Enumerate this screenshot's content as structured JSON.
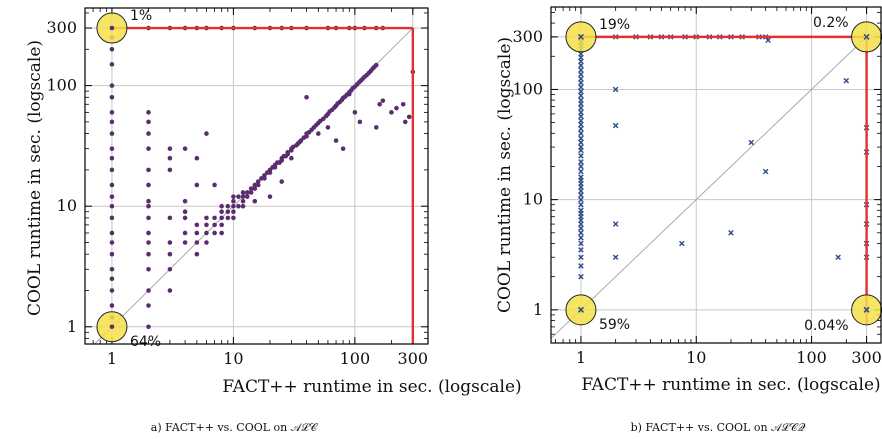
{
  "chart_data": [
    {
      "type": "scatter",
      "caption": "a) FACT++ vs. COOL on 𝒜ℒ𝒞",
      "xlabel": "FACT++ runtime in sec. (logscale)",
      "ylabel": "COOL runtime in sec. (logscale)",
      "x_scale": "log",
      "y_scale": "log",
      "xlim": [
        0.6,
        400
      ],
      "ylim": [
        0.72,
        440
      ],
      "x_ticks": [
        1,
        10,
        100,
        300
      ],
      "y_ticks": [
        1,
        10,
        100,
        300
      ],
      "grid": true,
      "marker": "dot",
      "color": "#5b2d6e",
      "timeout": 300,
      "highlights": [
        {
          "x": 1,
          "y": 300,
          "label": "1%"
        },
        {
          "x": 1,
          "y": 1,
          "label": "64%"
        }
      ],
      "points": [
        [
          1,
          1
        ],
        [
          1,
          1.2
        ],
        [
          1,
          1.5
        ],
        [
          1,
          2
        ],
        [
          1,
          2.5
        ],
        [
          1,
          3
        ],
        [
          1,
          4
        ],
        [
          1,
          5
        ],
        [
          1,
          6
        ],
        [
          1,
          8
        ],
        [
          1,
          10
        ],
        [
          1,
          12
        ],
        [
          1,
          15
        ],
        [
          1,
          20
        ],
        [
          1,
          25
        ],
        [
          1,
          30
        ],
        [
          1,
          40
        ],
        [
          1,
          50
        ],
        [
          1,
          60
        ],
        [
          1,
          80
        ],
        [
          1,
          100
        ],
        [
          1,
          150
        ],
        [
          1,
          200
        ],
        [
          1,
          250
        ],
        [
          1,
          300
        ],
        [
          2,
          300
        ],
        [
          3,
          300
        ],
        [
          4,
          300
        ],
        [
          5,
          300
        ],
        [
          6,
          300
        ],
        [
          8,
          300
        ],
        [
          10,
          300
        ],
        [
          15,
          300
        ],
        [
          20,
          300
        ],
        [
          25,
          300
        ],
        [
          30,
          300
        ],
        [
          40,
          300
        ],
        [
          60,
          300
        ],
        [
          70,
          300
        ],
        [
          90,
          300
        ],
        [
          100,
          300
        ],
        [
          120,
          300
        ],
        [
          150,
          300
        ],
        [
          170,
          300
        ],
        [
          2,
          1
        ],
        [
          2,
          1.5
        ],
        [
          2,
          2
        ],
        [
          2,
          3
        ],
        [
          2,
          4
        ],
        [
          2,
          5
        ],
        [
          2,
          6
        ],
        [
          2,
          8
        ],
        [
          2,
          10
        ],
        [
          2,
          11
        ],
        [
          2,
          15
        ],
        [
          2,
          20
        ],
        [
          2,
          30
        ],
        [
          2,
          40
        ],
        [
          2,
          50
        ],
        [
          2,
          60
        ],
        [
          3,
          2
        ],
        [
          3,
          3
        ],
        [
          3,
          4
        ],
        [
          3,
          5
        ],
        [
          3,
          8
        ],
        [
          3,
          20
        ],
        [
          3,
          25
        ],
        [
          3,
          30
        ],
        [
          4,
          5
        ],
        [
          4,
          6
        ],
        [
          4,
          8
        ],
        [
          4,
          9
        ],
        [
          4,
          11
        ],
        [
          4,
          30
        ],
        [
          5,
          4
        ],
        [
          5,
          5
        ],
        [
          5,
          6
        ],
        [
          5,
          7
        ],
        [
          5,
          15
        ],
        [
          5,
          25
        ],
        [
          6,
          5
        ],
        [
          6,
          6
        ],
        [
          6,
          7
        ],
        [
          6,
          8
        ],
        [
          6,
          40
        ],
        [
          7,
          6
        ],
        [
          7,
          7
        ],
        [
          7,
          8
        ],
        [
          7,
          15
        ],
        [
          8,
          6
        ],
        [
          8,
          7
        ],
        [
          8,
          8
        ],
        [
          8,
          9
        ],
        [
          8,
          10
        ],
        [
          9,
          8
        ],
        [
          9,
          9
        ],
        [
          9,
          10
        ],
        [
          10,
          8
        ],
        [
          10,
          9
        ],
        [
          10,
          10
        ],
        [
          10,
          11
        ],
        [
          10,
          12
        ],
        [
          11,
          10
        ],
        [
          11,
          12
        ],
        [
          12,
          11
        ],
        [
          12,
          12
        ],
        [
          12,
          13
        ],
        [
          13,
          12
        ],
        [
          13,
          13
        ],
        [
          14,
          13
        ],
        [
          14,
          14
        ],
        [
          15,
          14
        ],
        [
          15,
          15
        ],
        [
          16,
          15
        ],
        [
          16,
          16
        ],
        [
          17,
          17
        ],
        [
          18,
          17
        ],
        [
          18,
          18
        ],
        [
          19,
          19
        ],
        [
          20,
          19
        ],
        [
          20,
          20
        ],
        [
          21,
          21
        ],
        [
          22,
          21
        ],
        [
          22,
          22
        ],
        [
          23,
          23
        ],
        [
          24,
          23
        ],
        [
          25,
          24
        ],
        [
          25,
          25
        ],
        [
          26,
          26
        ],
        [
          27,
          26
        ],
        [
          28,
          27
        ],
        [
          28,
          28
        ],
        [
          30,
          29
        ],
        [
          30,
          30
        ],
        [
          31,
          31
        ],
        [
          33,
          32
        ],
        [
          34,
          33
        ],
        [
          35,
          34
        ],
        [
          36,
          35
        ],
        [
          38,
          37
        ],
        [
          40,
          38
        ],
        [
          40,
          40
        ],
        [
          42,
          41
        ],
        [
          44,
          43
        ],
        [
          46,
          45
        ],
        [
          48,
          47
        ],
        [
          50,
          49
        ],
        [
          52,
          51
        ],
        [
          55,
          53
        ],
        [
          58,
          56
        ],
        [
          60,
          58
        ],
        [
          62,
          61
        ],
        [
          65,
          63
        ],
        [
          68,
          66
        ],
        [
          70,
          68
        ],
        [
          72,
          71
        ],
        [
          75,
          73
        ],
        [
          78,
          76
        ],
        [
          80,
          79
        ],
        [
          83,
          81
        ],
        [
          86,
          84
        ],
        [
          90,
          88
        ],
        [
          93,
          91
        ],
        [
          96,
          95
        ],
        [
          100,
          98
        ],
        [
          104,
          102
        ],
        [
          108,
          106
        ],
        [
          112,
          110
        ],
        [
          116,
          114
        ],
        [
          120,
          118
        ],
        [
          125,
          122
        ],
        [
          130,
          127
        ],
        [
          135,
          132
        ],
        [
          140,
          138
        ],
        [
          145,
          143
        ],
        [
          150,
          148
        ],
        [
          150,
          45
        ],
        [
          160,
          70
        ],
        [
          170,
          75
        ],
        [
          200,
          60
        ],
        [
          220,
          65
        ],
        [
          250,
          70
        ],
        [
          260,
          50
        ],
        [
          280,
          55
        ],
        [
          300,
          130
        ],
        [
          20,
          12
        ],
        [
          30,
          25
        ],
        [
          40,
          80
        ],
        [
          50,
          40
        ],
        [
          60,
          45
        ],
        [
          70,
          35
        ],
        [
          80,
          30
        ],
        [
          90,
          85
        ],
        [
          100,
          60
        ],
        [
          110,
          50
        ],
        [
          25,
          16
        ],
        [
          15,
          11
        ],
        [
          12,
          10
        ]
      ]
    },
    {
      "type": "scatter",
      "caption": "b) FACT++ vs. COOL on 𝒜ℒ𝒞𝒬",
      "xlabel": "FACT++ runtime in sec. (logscale)",
      "ylabel": "COOL runtime in sec. (logscale)",
      "x_scale": "log",
      "y_scale": "log",
      "xlim": [
        0.55,
        400
      ],
      "ylim": [
        0.5,
        560
      ],
      "x_ticks": [
        1,
        10,
        100,
        300
      ],
      "y_ticks": [
        1,
        10,
        100,
        300
      ],
      "grid": true,
      "marker": "x",
      "color": "#2a4a8c",
      "timeout": 300,
      "highlights": [
        {
          "x": 1,
          "y": 300,
          "label": "19%"
        },
        {
          "x": 300,
          "y": 300,
          "label": "0.2%"
        },
        {
          "x": 1,
          "y": 1,
          "label": "59%"
        },
        {
          "x": 300,
          "y": 1,
          "label": "0.04%"
        }
      ],
      "points": [
        [
          1,
          1
        ],
        [
          1,
          2
        ],
        [
          1,
          2.5
        ],
        [
          1,
          3
        ],
        [
          1,
          3.5
        ],
        [
          1,
          4
        ],
        [
          1,
          4.5
        ],
        [
          1,
          5
        ],
        [
          1,
          5.5
        ],
        [
          1,
          6
        ],
        [
          1,
          6.5
        ],
        [
          1,
          7
        ],
        [
          1,
          7.5
        ],
        [
          1,
          8
        ],
        [
          1,
          9
        ],
        [
          1,
          10
        ],
        [
          1,
          11
        ],
        [
          1,
          12
        ],
        [
          1,
          13
        ],
        [
          1,
          14
        ],
        [
          1,
          15
        ],
        [
          1,
          16
        ],
        [
          1,
          18
        ],
        [
          1,
          20
        ],
        [
          1,
          22
        ],
        [
          1,
          25
        ],
        [
          1,
          28
        ],
        [
          1,
          30
        ],
        [
          1,
          33
        ],
        [
          1,
          36
        ],
        [
          1,
          40
        ],
        [
          1,
          44
        ],
        [
          1,
          48
        ],
        [
          1,
          52
        ],
        [
          1,
          57
        ],
        [
          1,
          62
        ],
        [
          1,
          68
        ],
        [
          1,
          74
        ],
        [
          1,
          80
        ],
        [
          1,
          88
        ],
        [
          1,
          96
        ],
        [
          1,
          105
        ],
        [
          1,
          115
        ],
        [
          1,
          125
        ],
        [
          1,
          137
        ],
        [
          1,
          150
        ],
        [
          1,
          165
        ],
        [
          1,
          180
        ],
        [
          1,
          195
        ],
        [
          1,
          210
        ],
        [
          1,
          230
        ],
        [
          1,
          250
        ],
        [
          1,
          270
        ],
        [
          1,
          290
        ],
        [
          1,
          300
        ],
        [
          2,
          300
        ],
        [
          3,
          300
        ],
        [
          4,
          300
        ],
        [
          5,
          300
        ],
        [
          6,
          300
        ],
        [
          8,
          300
        ],
        [
          10,
          300
        ],
        [
          13,
          300
        ],
        [
          16,
          300
        ],
        [
          20,
          300
        ],
        [
          25,
          300
        ],
        [
          35,
          300
        ],
        [
          40,
          300
        ],
        [
          42,
          280
        ],
        [
          300,
          300
        ],
        [
          2,
          3
        ],
        [
          2,
          6
        ],
        [
          2,
          47
        ],
        [
          2,
          100
        ],
        [
          7.5,
          4
        ],
        [
          20,
          5
        ],
        [
          30,
          33
        ],
        [
          40,
          18
        ],
        [
          170,
          3
        ],
        [
          200,
          120
        ],
        [
          300,
          1
        ],
        [
          300,
          3
        ],
        [
          300,
          4
        ],
        [
          300,
          6
        ],
        [
          300,
          9
        ],
        [
          300,
          27
        ],
        [
          300,
          45
        ]
      ]
    }
  ]
}
